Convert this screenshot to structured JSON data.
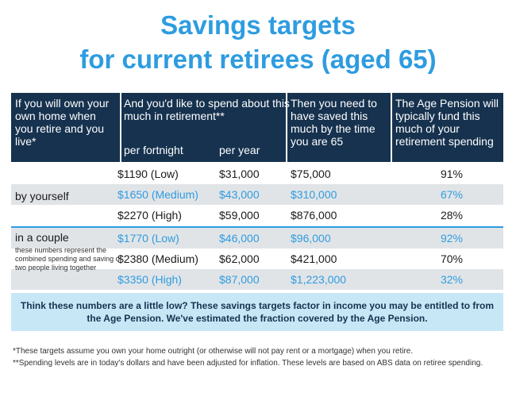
{
  "title": {
    "line1": "Savings targets",
    "line2": "for current retirees (aged 65)"
  },
  "header": {
    "col1": "If you will own your own home when you retire and you live*",
    "col2": "And you'd like to spend about this much in retirement**",
    "col2_sub1": "per fortnight",
    "col2_sub2": "per year",
    "col3": "Then you need to have saved this much by the time you are 65",
    "col4": "The Age Pension will typically fund this much of your retirement spending"
  },
  "groups": [
    {
      "label": "by yourself",
      "note": ""
    },
    {
      "label": "in a couple",
      "note": "these numbers represent the combined spending and saving of two people living together"
    }
  ],
  "rows": [
    {
      "fortnight": "$1190 (Low)",
      "year": "$31,000",
      "saved": "$75,000",
      "pension": "91%"
    },
    {
      "fortnight": "$1650 (Medium)",
      "year": "$43,000",
      "saved": "$310,000",
      "pension": "67%"
    },
    {
      "fortnight": "$2270 (High)",
      "year": "$59,000",
      "saved": "$876,000",
      "pension": "28%"
    },
    {
      "fortnight": "$1770 (Low)",
      "year": "$46,000",
      "saved": "$96,000",
      "pension": "92%"
    },
    {
      "fortnight": "$2380 (Medium)",
      "year": "$62,000",
      "saved": "$421,000",
      "pension": "70%"
    },
    {
      "fortnight": "$3350 (High)",
      "year": "$87,000",
      "saved": "$1,223,000",
      "pension": "32%"
    }
  ],
  "callout": "Think these numbers are a little low? These savings targets factor in income you may be entitled to from the Age Pension. We've estimated the fraction covered by the Age Pension.",
  "footnotes": [
    "*These targets assume you own your home outright (or otherwise will not pay rent or a mortgage) when you retire.",
    "**Spending levels are in today's dollars and have been adjusted for inflation. These levels are based on ABS data on retiree spending."
  ],
  "colors": {
    "title": "#2e9ce0",
    "header_bg": "#16324f",
    "shade_bg": "#e1e4e7",
    "callout_bg": "#c7e7f6"
  }
}
